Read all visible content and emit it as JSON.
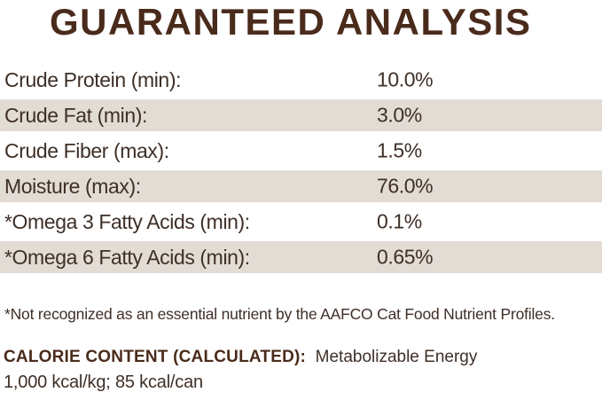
{
  "title": "GUARANTEED ANALYSIS",
  "colors": {
    "title_brown": "#4A2B1B",
    "body_text_brown": "#3E2F27",
    "row_shade_beige": "#E2DCD5",
    "background": "#FFFFFF"
  },
  "table": {
    "rows": [
      {
        "label": "Crude Protein (min):",
        "value": "10.0%",
        "shaded": false
      },
      {
        "label": "Crude Fat (min):",
        "value": "3.0%",
        "shaded": true
      },
      {
        "label": "Crude Fiber (max):",
        "value": "1.5%",
        "shaded": false
      },
      {
        "label": "Moisture (max):",
        "value": "76.0%",
        "shaded": true
      },
      {
        "label": "*Omega 3 Fatty Acids (min):",
        "value": "0.1%",
        "shaded": false
      },
      {
        "label": "*Omega 6 Fatty Acids (min):",
        "value": "0.65%",
        "shaded": true
      }
    ]
  },
  "footnote": "*Not recognized as an essential nutrient by the AAFCO Cat Food Nutrient Profiles.",
  "calorie": {
    "heading": "CALORIE CONTENT (CALCULATED):",
    "description": "Metabolizable Energy",
    "values": "1,000 kcal/kg; 85 kcal/can"
  }
}
